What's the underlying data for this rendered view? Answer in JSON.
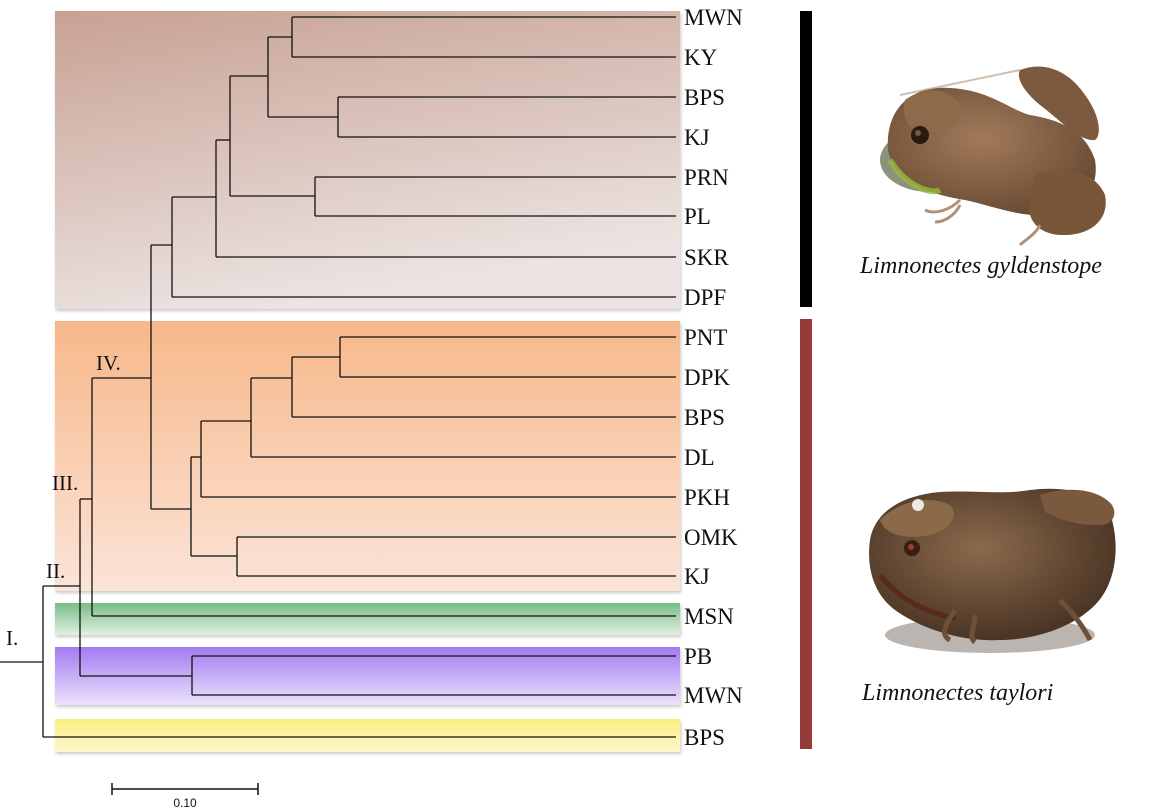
{
  "tree": {
    "tips": [
      {
        "id": "t1",
        "label": "MWN"
      },
      {
        "id": "t2",
        "label": "KY"
      },
      {
        "id": "t3",
        "label": "BPS"
      },
      {
        "id": "t4",
        "label": "KJ"
      },
      {
        "id": "t5",
        "label": "PRN"
      },
      {
        "id": "t6",
        "label": "PL"
      },
      {
        "id": "t7",
        "label": "SKR"
      },
      {
        "id": "t8",
        "label": "DPF"
      },
      {
        "id": "t9",
        "label": "PNT"
      },
      {
        "id": "t10",
        "label": "DPK"
      },
      {
        "id": "t11",
        "label": "BPS"
      },
      {
        "id": "t12",
        "label": "DL"
      },
      {
        "id": "t13",
        "label": "PKH"
      },
      {
        "id": "t14",
        "label": "OMK"
      },
      {
        "id": "t15",
        "label": "KJ"
      },
      {
        "id": "t16",
        "label": "MSN"
      },
      {
        "id": "t17",
        "label": "PB"
      },
      {
        "id": "t18",
        "label": "MWN"
      },
      {
        "id": "t19",
        "label": "BPS"
      }
    ],
    "node_labels": [
      "I.",
      "II.",
      "III.",
      "IV."
    ],
    "scale_bar_label": "0.10"
  },
  "groups": [
    {
      "name": "gyldenstope-clade",
      "color": "#c9a295"
    },
    {
      "name": "taylori-clade",
      "color": "#f7b98c"
    },
    {
      "name": "msn-clade",
      "color": "#7cc08a"
    },
    {
      "name": "pb-mwn-clade",
      "color": "#a67ef0"
    },
    {
      "name": "bps-clade",
      "color": "#fbf08a"
    }
  ],
  "bars": [
    {
      "name": "gyldenstope-bar",
      "color": "#000000"
    },
    {
      "name": "taylori-bar",
      "color": "#953a3a"
    }
  ],
  "species": {
    "top": "Limnonectes gyldenstope",
    "bottom": "Limnonectes taylori"
  }
}
